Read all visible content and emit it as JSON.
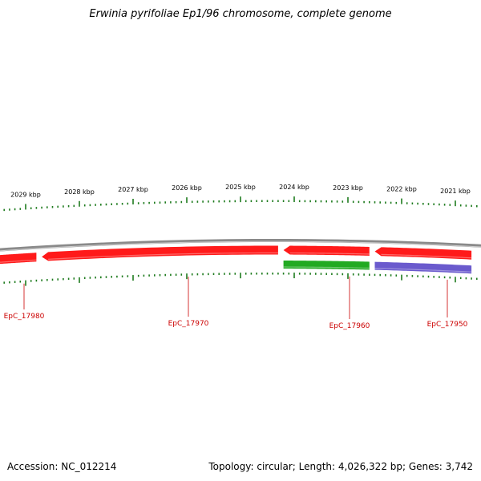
{
  "title": "Erwinia pyrifoliae Ep1/96 chromosome, complete genome",
  "accession": "Accession: NC_012214",
  "stats": "Topology: circular; Length: 4,026,322 bp; Genes: 3,742",
  "colors": {
    "backbone": "#8a8a8a",
    "cds": "#ff1a1a",
    "rna": "#22aa22",
    "other": "#6a5acd",
    "tick": "#1e7b1e",
    "gene_label": "#cc0000"
  },
  "scale": {
    "ticks_kbp": [
      2029,
      2028,
      2027,
      2026,
      2025,
      2024,
      2023,
      2022,
      2021
    ],
    "unit": "kbp"
  },
  "genes": [
    {
      "id": "EpC_17980",
      "start_kbp": 2029.8,
      "end_kbp": 2028.8,
      "strand": "-",
      "type": "CDS"
    },
    {
      "id": "EpC_17970",
      "start_kbp": 2028.7,
      "end_kbp": 2024.3,
      "strand": "-",
      "type": "CDS"
    },
    {
      "id": "EpC_17960",
      "start_kbp": 2024.2,
      "end_kbp": 2022.6,
      "strand": "-",
      "type": "CDS"
    },
    {
      "id": "EpC_17960_rna",
      "start_kbp": 2024.2,
      "end_kbp": 2022.6,
      "strand": "-",
      "type": "RNA"
    },
    {
      "id": "EpC_17950",
      "start_kbp": 2022.5,
      "end_kbp": 2020.7,
      "strand": "-",
      "type": "CDS"
    },
    {
      "id": "EpC_17950_other",
      "start_kbp": 2022.5,
      "end_kbp": 2020.7,
      "strand": "-",
      "type": "other"
    }
  ],
  "labels": [
    "EpC_17980",
    "EpC_17970",
    "EpC_17960",
    "EpC_17950"
  ]
}
